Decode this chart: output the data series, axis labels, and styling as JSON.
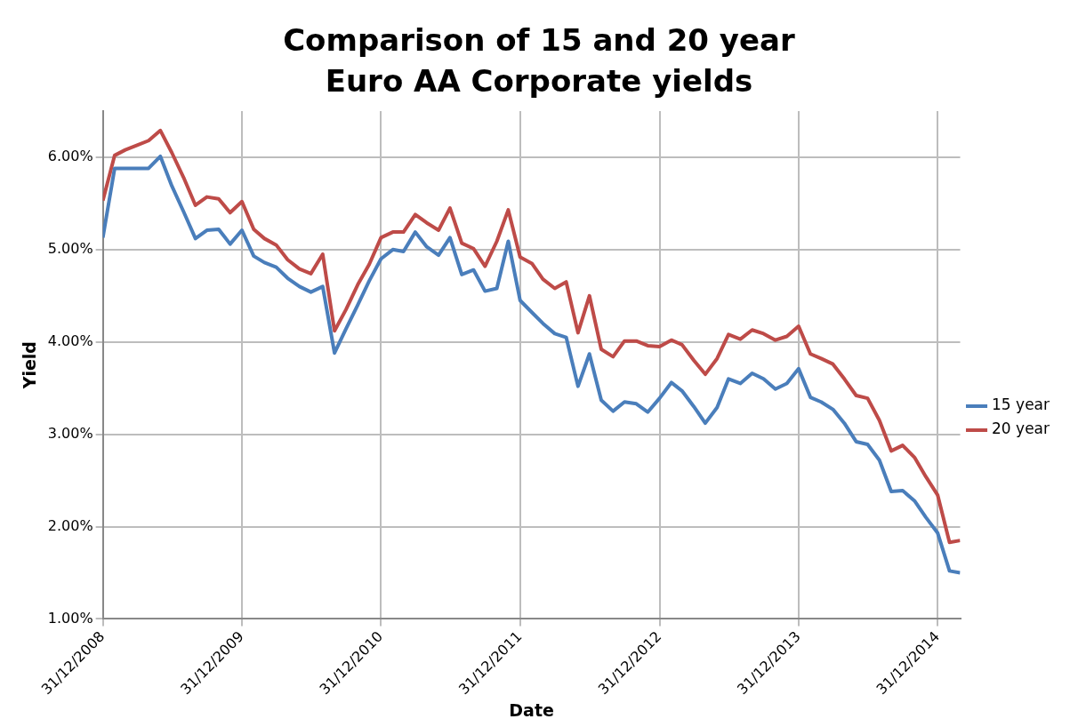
{
  "chart_data": {
    "type": "line",
    "title": "Comparison of 15 and 20 year Euro AA Corporate yields",
    "xlabel": "Date",
    "ylabel": "Yield",
    "x": [
      "2008-12-31",
      "2009-01-31",
      "2009-02-28",
      "2009-03-31",
      "2009-04-30",
      "2009-05-31",
      "2009-06-30",
      "2009-07-31",
      "2009-08-31",
      "2009-09-30",
      "2009-10-31",
      "2009-11-30",
      "2009-12-31",
      "2010-01-31",
      "2010-02-28",
      "2010-03-31",
      "2010-04-30",
      "2010-05-31",
      "2010-06-30",
      "2010-07-31",
      "2010-08-31",
      "2010-09-30",
      "2010-10-31",
      "2010-11-30",
      "2010-12-31",
      "2011-01-31",
      "2011-02-28",
      "2011-03-31",
      "2011-04-30",
      "2011-05-31",
      "2011-06-30",
      "2011-07-31",
      "2011-08-31",
      "2011-09-30",
      "2011-10-31",
      "2011-11-30",
      "2011-12-31",
      "2012-01-31",
      "2012-02-29",
      "2012-03-31",
      "2012-04-30",
      "2012-05-31",
      "2012-06-30",
      "2012-07-31",
      "2012-08-31",
      "2012-09-30",
      "2012-10-31",
      "2012-11-30",
      "2012-12-31",
      "2013-01-31",
      "2013-02-28",
      "2013-03-31",
      "2013-04-30",
      "2013-05-31",
      "2013-06-30",
      "2013-07-31",
      "2013-08-31",
      "2013-09-30",
      "2013-10-31",
      "2013-11-30",
      "2013-12-31",
      "2014-01-31",
      "2014-02-28",
      "2014-03-31",
      "2014-04-30",
      "2014-05-31",
      "2014-06-30",
      "2014-07-31",
      "2014-08-31",
      "2014-09-30",
      "2014-10-31",
      "2014-11-30",
      "2014-12-31",
      "2015-01-31",
      "2015-02-28"
    ],
    "series": [
      {
        "name": "15 year",
        "color": "#4a7ebb",
        "values": [
          5.13,
          5.88,
          5.88,
          5.88,
          5.88,
          6.01,
          5.69,
          5.41,
          5.12,
          5.21,
          5.22,
          5.06,
          5.21,
          4.93,
          4.86,
          4.81,
          4.69,
          4.6,
          4.54,
          4.6,
          3.88,
          4.14,
          4.4,
          4.66,
          4.9,
          5.0,
          4.98,
          5.19,
          5.03,
          4.94,
          5.13,
          4.73,
          4.78,
          4.55,
          4.58,
          5.09,
          4.45,
          4.32,
          4.2,
          4.09,
          4.05,
          3.52,
          3.87,
          3.37,
          3.25,
          3.35,
          3.33,
          3.24,
          3.39,
          3.56,
          3.47,
          3.3,
          3.12,
          3.29,
          3.6,
          3.55,
          3.66,
          3.6,
          3.49,
          3.55,
          3.71,
          3.4,
          3.35,
          3.27,
          3.12,
          2.92,
          2.89,
          2.72,
          2.38,
          2.39,
          2.28,
          2.1,
          1.93,
          1.52,
          1.5
        ]
      },
      {
        "name": "20 year",
        "color": "#be4b48",
        "values": [
          5.53,
          6.02,
          6.08,
          6.13,
          6.18,
          6.29,
          6.05,
          5.78,
          5.48,
          5.57,
          5.55,
          5.4,
          5.52,
          5.22,
          5.12,
          5.05,
          4.89,
          4.79,
          4.74,
          4.95,
          4.12,
          4.35,
          4.62,
          4.84,
          5.13,
          5.19,
          5.19,
          5.38,
          5.29,
          5.21,
          5.45,
          5.07,
          5.01,
          4.82,
          5.09,
          5.43,
          4.92,
          4.85,
          4.68,
          4.58,
          4.65,
          4.1,
          4.5,
          3.92,
          3.84,
          4.01,
          4.01,
          3.96,
          3.95,
          4.02,
          3.97,
          3.8,
          3.65,
          3.82,
          4.08,
          4.03,
          4.13,
          4.09,
          4.02,
          4.06,
          4.17,
          3.87,
          3.82,
          3.76,
          3.6,
          3.42,
          3.39,
          3.15,
          2.82,
          2.88,
          2.75,
          2.54,
          2.34,
          1.83,
          1.85
        ]
      }
    ],
    "xlim": [
      "2008-12-31",
      "2015-02-28"
    ],
    "xticks": [
      {
        "value": "2008-12-31",
        "label": "31/12/2008"
      },
      {
        "value": "2009-12-31",
        "label": "31/12/2009"
      },
      {
        "value": "2010-12-31",
        "label": "31/12/2010"
      },
      {
        "value": "2011-12-31",
        "label": "31/12/2011"
      },
      {
        "value": "2012-12-31",
        "label": "31/12/2012"
      },
      {
        "value": "2013-12-31",
        "label": "31/12/2013"
      },
      {
        "value": "2014-12-31",
        "label": "31/12/2014"
      }
    ],
    "ylim": [
      1,
      6.5
    ],
    "yticks": [
      {
        "value": 1,
        "label": "1.00%"
      },
      {
        "value": 2,
        "label": "2.00%"
      },
      {
        "value": 3,
        "label": "3.00%"
      },
      {
        "value": 4,
        "label": "4.00%"
      },
      {
        "value": 5,
        "label": "5.00%"
      },
      {
        "value": 6,
        "label": "6.00%"
      }
    ],
    "grid": true,
    "legend": "right",
    "marker": "none",
    "line_style": "solid"
  }
}
